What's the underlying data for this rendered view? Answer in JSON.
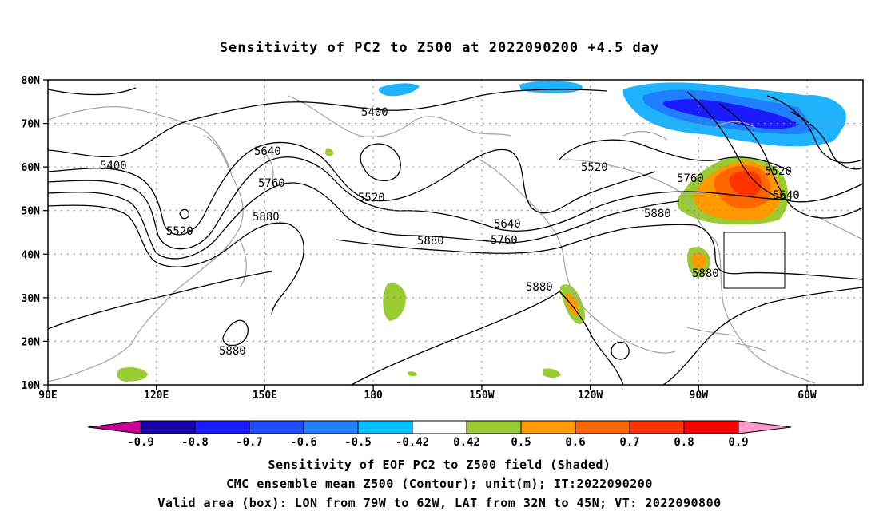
{
  "title": "Sensitivity of PC2 to Z500 at 2022090200 +4.5 day",
  "lat_labels": [
    "80N",
    "70N",
    "60N",
    "50N",
    "40N",
    "30N",
    "20N",
    "10N"
  ],
  "lon_labels": [
    "90E",
    "120E",
    "150E",
    "180",
    "150W",
    "120W",
    "90W",
    "60W"
  ],
  "contour_labels": [
    "5400",
    "5400",
    "5520",
    "5520",
    "5520",
    "5520",
    "5640",
    "5640",
    "5640",
    "5760",
    "5760",
    "5760",
    "5880",
    "5880",
    "5880",
    "5880",
    "5880"
  ],
  "colorbar": {
    "labels": [
      "-0.9",
      "-0.8",
      "-0.7",
      "-0.6",
      "-0.5",
      "-0.42",
      "0.42",
      "0.5",
      "0.6",
      "0.7",
      "0.8",
      "0.9"
    ],
    "colors": [
      "#cc0099",
      "#1a00a8",
      "#1a1aff",
      "#1f4dff",
      "#1f7fff",
      "#00bfff",
      "#ffffff",
      "#99cc33",
      "#ff9900",
      "#ff6600",
      "#ff3300",
      "#ff0000",
      "#ff99cc"
    ]
  },
  "footer": {
    "line1": "Sensitivity of EOF PC2 to Z500 field (Shaded)",
    "line2": "CMC ensemble mean Z500 (Contour); unit(m); IT:2022090200",
    "line3": "Valid area (box): LON from 79W to 62W, LAT from 32N to 45N; VT: 2022090800"
  }
}
